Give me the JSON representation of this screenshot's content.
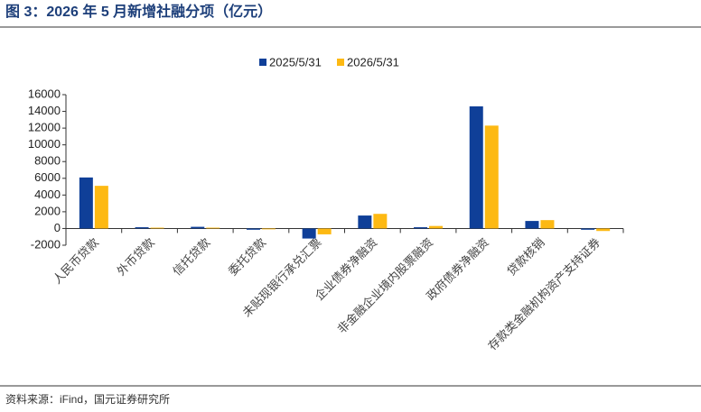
{
  "chart_data": {
    "type": "bar",
    "title": "图 3：2026 年 5 月新增社融分项（亿元）",
    "source": "资料来源：iFind，国元证券研究所",
    "categories": [
      "人民币贷款",
      "外币贷款",
      "信托贷款",
      "委托贷款",
      "未贴现银行承兑汇票",
      "企业债券净融资",
      "非金融企业境内股票融资",
      "政府债券净融资",
      "贷款核销",
      "存款类金融机构资产支持证券"
    ],
    "series": [
      {
        "name": "2025/5/31",
        "color": "#0f3f98",
        "values": [
          6100,
          150,
          200,
          -150,
          -1200,
          1550,
          150,
          14600,
          900,
          -150
        ]
      },
      {
        "name": "2026/5/31",
        "color": "#fdb913",
        "values": [
          5100,
          100,
          100,
          -100,
          -700,
          1750,
          300,
          12300,
          1000,
          -300
        ]
      }
    ],
    "ylim": [
      -2000,
      16000
    ],
    "yticks": [
      -2000,
      0,
      2000,
      4000,
      6000,
      8000,
      10000,
      12000,
      14000,
      16000
    ],
    "legend": "top"
  }
}
